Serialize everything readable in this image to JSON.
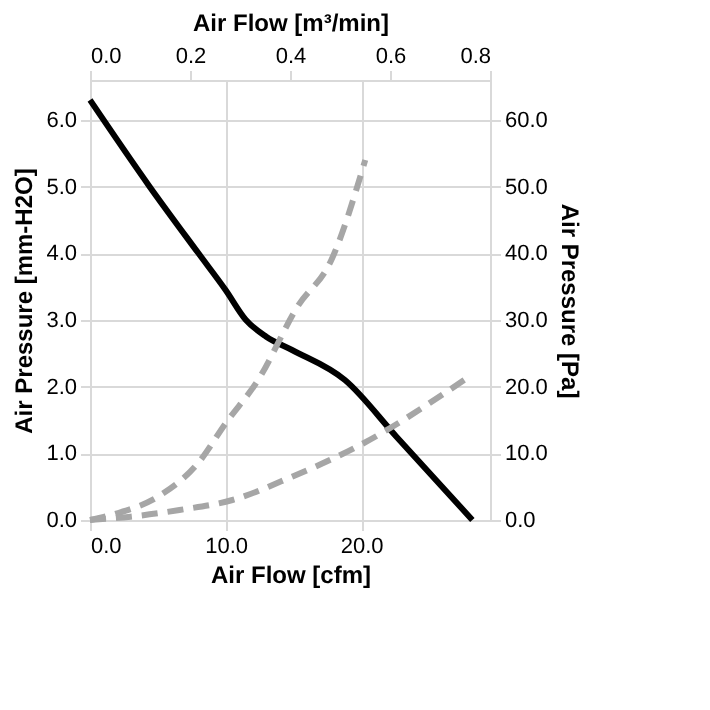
{
  "chart_data": {
    "type": "line",
    "xlabel": "Air Flow [cfm]",
    "ylabel": "Air Pressure [mm-H2O]",
    "y2label": "Air Pressure [Pa]",
    "x2label": "Air Flow [m³/min]",
    "xlim": [
      0,
      29.5
    ],
    "xticks": [
      {
        "value": 0,
        "label": "0.0"
      },
      {
        "value": 10,
        "label": "10.0"
      },
      {
        "value": 20,
        "label": "20.0"
      }
    ],
    "x2lim": [
      0,
      0.8
    ],
    "x2ticks": [
      {
        "value": 0,
        "label": "0.0"
      },
      0.2,
      0.4,
      0.6,
      0.8
    ],
    "ylim": [
      0,
      6.6
    ],
    "yticks": [
      {
        "value": 0,
        "label": "0.0"
      },
      {
        "value": 1,
        "label": "1.0"
      },
      {
        "value": 2,
        "label": "2.0"
      },
      {
        "value": 3,
        "label": "3.0"
      },
      {
        "value": 4,
        "label": "4.0"
      },
      {
        "value": 5,
        "label": "5.0"
      },
      {
        "value": 6,
        "label": "6.0"
      }
    ],
    "y2lim": [
      0,
      66
    ],
    "y2ticks": [
      {
        "value": 0,
        "label": "0.0"
      },
      {
        "value": 10,
        "label": "10.0"
      },
      {
        "value": 20,
        "label": "20.0"
      },
      {
        "value": 30,
        "label": "30.0"
      },
      {
        "value": 40,
        "label": "40.0"
      },
      {
        "value": 50,
        "label": "50.0"
      },
      {
        "value": 60,
        "label": "60.0"
      }
    ],
    "grid": true,
    "series": [
      {
        "color": "#000000",
        "line_style": "solid",
        "x": [
          0,
          4.4,
          8.0,
          10,
          11.5,
          13,
          14.9,
          18.8,
          22.6,
          28.2
        ],
        "values": [
          6.3,
          5.0,
          4.0,
          3.45,
          3.0,
          2.75,
          2.55,
          2.1,
          1.25,
          0
        ]
      },
      {
        "color": "#a6a6a6",
        "line_style": "dashed",
        "axis": "y2",
        "x": [
          0,
          2,
          5.1,
          8.0,
          10,
          12.4,
          15.3,
          17.8,
          20.3
        ],
        "values": [
          0,
          1,
          3.6,
          8.6,
          14.5,
          21,
          32,
          39,
          54
        ]
      },
      {
        "color": "#a6a6a6",
        "line_style": "dashed",
        "axis": "y2",
        "x": [
          0,
          3,
          6.6,
          10.5,
          14.9,
          19.7,
          27.6
        ],
        "values": [
          0,
          0.5,
          1.5,
          3,
          6.5,
          11,
          21
        ]
      }
    ]
  }
}
